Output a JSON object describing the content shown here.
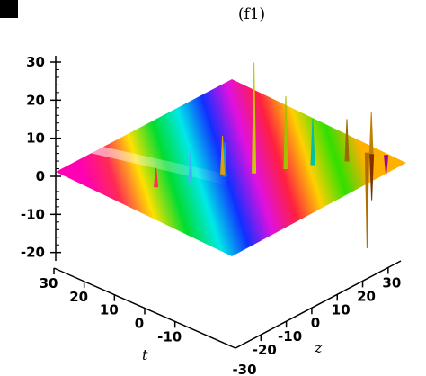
{
  "panel": {
    "title": "(f1)"
  },
  "colors": {
    "axis": "#000000",
    "background": "#ffffff",
    "corner_mark": "#000000"
  },
  "chart_data": {
    "type": "surface3d",
    "title": "(f1)",
    "zlabel": "",
    "xlabel": "t",
    "ylabel": "z",
    "z_ticks": [
      30,
      20,
      10,
      0,
      -10,
      -20
    ],
    "t_ticks": [
      30,
      20,
      10,
      0,
      -10
    ],
    "z_axis_ticks": [
      -20,
      -10,
      0,
      10,
      20,
      30
    ],
    "t_extra_ticks": [
      -30
    ],
    "zlim": [
      -22,
      32
    ],
    "tlim": [
      -30,
      35
    ],
    "ylim_z": [
      -25,
      35
    ],
    "colormap": "rainbow (phase, stripes along z)",
    "spikes": [
      {
        "t": -2,
        "z": 5,
        "value": 29
      },
      {
        "t": -5,
        "z": 10,
        "value": 19
      },
      {
        "t": -8,
        "z": 14,
        "value": 12
      },
      {
        "t": -10,
        "z": 20,
        "value": 11
      },
      {
        "t": 0,
        "z": 0,
        "value": 9
      },
      {
        "t": -3,
        "z": -2,
        "value": 10
      },
      {
        "t": 4,
        "z": -5,
        "value": 8
      },
      {
        "t": -12,
        "z": 24,
        "value": 12
      },
      {
        "t": -14,
        "z": 26,
        "value": -5
      },
      {
        "t": -16,
        "z": 22,
        "value": -12
      },
      {
        "t": -18,
        "z": 20,
        "value": -25
      },
      {
        "t": 8,
        "z": -10,
        "value": 5
      }
    ]
  }
}
